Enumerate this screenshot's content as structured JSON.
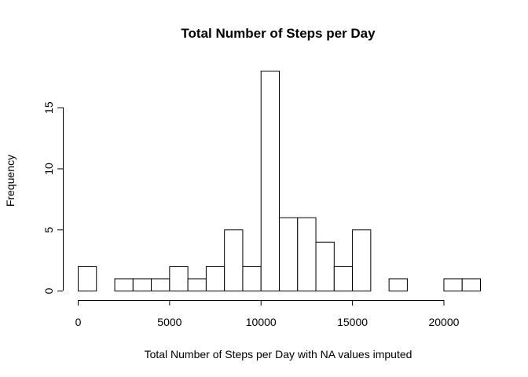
{
  "chart_data": {
    "type": "bar",
    "title": "Total Number of Steps per Day",
    "xlabel": "Total Number of Steps per Day with NA values imputed",
    "ylabel": "Frequency",
    "bin_width": 1000,
    "bins": [
      {
        "start": 0,
        "end": 1000,
        "count": 2
      },
      {
        "start": 1000,
        "end": 2000,
        "count": 0
      },
      {
        "start": 2000,
        "end": 3000,
        "count": 1
      },
      {
        "start": 3000,
        "end": 4000,
        "count": 1
      },
      {
        "start": 4000,
        "end": 5000,
        "count": 1
      },
      {
        "start": 5000,
        "end": 6000,
        "count": 2
      },
      {
        "start": 6000,
        "end": 7000,
        "count": 1
      },
      {
        "start": 7000,
        "end": 8000,
        "count": 2
      },
      {
        "start": 8000,
        "end": 9000,
        "count": 5
      },
      {
        "start": 9000,
        "end": 10000,
        "count": 2
      },
      {
        "start": 10000,
        "end": 11000,
        "count": 18
      },
      {
        "start": 11000,
        "end": 12000,
        "count": 6
      },
      {
        "start": 12000,
        "end": 13000,
        "count": 6
      },
      {
        "start": 13000,
        "end": 14000,
        "count": 4
      },
      {
        "start": 14000,
        "end": 15000,
        "count": 2
      },
      {
        "start": 15000,
        "end": 16000,
        "count": 5
      },
      {
        "start": 16000,
        "end": 17000,
        "count": 0
      },
      {
        "start": 17000,
        "end": 18000,
        "count": 1
      },
      {
        "start": 18000,
        "end": 19000,
        "count": 0
      },
      {
        "start": 19000,
        "end": 20000,
        "count": 0
      },
      {
        "start": 20000,
        "end": 21000,
        "count": 1
      },
      {
        "start": 21000,
        "end": 22000,
        "count": 1
      }
    ],
    "xlim": [
      0,
      22000
    ],
    "ylim": [
      0,
      18
    ],
    "x_ticks": [
      0,
      5000,
      10000,
      15000,
      20000
    ],
    "x_tick_labels": [
      "0",
      "5000",
      "10000",
      "15000",
      "20000"
    ],
    "y_ticks": [
      0,
      5,
      10,
      15
    ],
    "y_tick_labels": [
      "0",
      "5",
      "10",
      "15"
    ],
    "grid": false,
    "legend": "none",
    "bar_fill": "#ffffff",
    "bar_stroke": "#000000",
    "background": "#ffffff"
  }
}
